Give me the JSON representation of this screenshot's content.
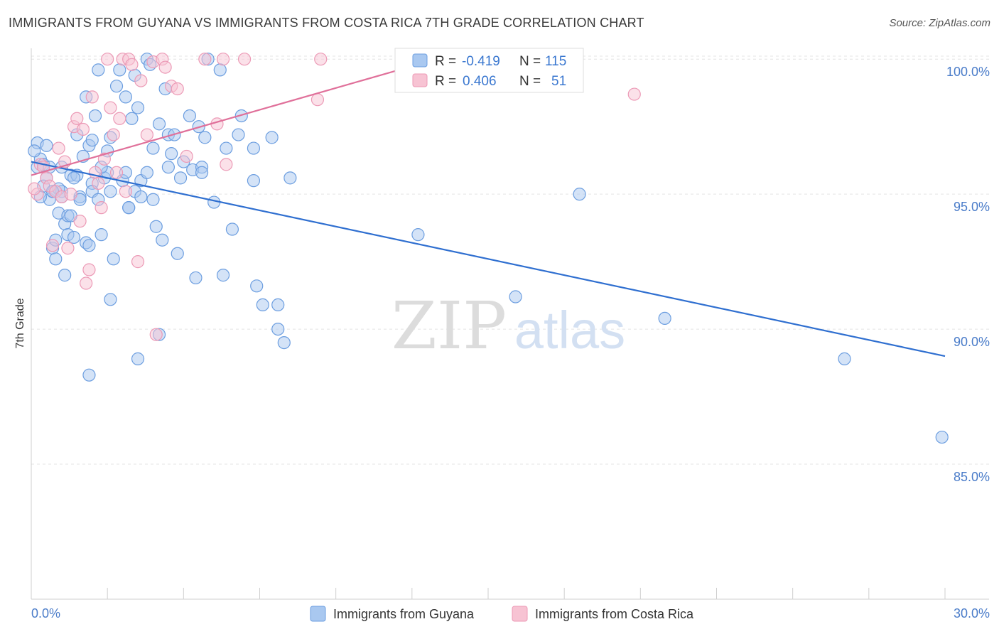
{
  "title": "IMMIGRANTS FROM GUYANA VS IMMIGRANTS FROM COSTA RICA 7TH GRADE CORRELATION CHART",
  "source": "Source: ZipAtlas.com",
  "watermark": {
    "zip": "ZIP",
    "atlas": "atlas"
  },
  "colors": {
    "blue_fill": "#a9c8f0",
    "blue_stroke": "#6c9ee0",
    "blue_line": "#2f6fd0",
    "pink_fill": "#f7c3d3",
    "pink_stroke": "#ec9ab6",
    "pink_line": "#e0709a",
    "grid": "#e4e4e4",
    "axis_text": "#4a7cc9"
  },
  "legend": {
    "r_label": "R =",
    "n_label": "N =",
    "rows": [
      {
        "r": "-0.419",
        "n": "115",
        "color": "blue"
      },
      {
        "r": "0.406",
        "n": "51",
        "color": "pink"
      }
    ]
  },
  "chart_data": {
    "type": "scatter",
    "title": "IMMIGRANTS FROM GUYANA VS IMMIGRANTS FROM COSTA RICA 7TH GRADE CORRELATION CHART",
    "xlabel": "",
    "ylabel": "7th Grade",
    "xlim": [
      0.0,
      30.0
    ],
    "ylim": [
      80.0,
      100.4
    ],
    "x_tick_labels": [
      "0.0%",
      "30.0%"
    ],
    "y_ticks": [
      85.0,
      90.0,
      95.0,
      100.0
    ],
    "y_tick_labels": [
      "85.0%",
      "90.0%",
      "95.0%",
      "100.0%"
    ],
    "grid": true,
    "legend_position": "bottom",
    "series": [
      {
        "name": "Immigrants from Guyana",
        "color": "blue",
        "r": -0.419,
        "n": 115,
        "trend": {
          "x": [
            0.0,
            30.0
          ],
          "y": [
            96.2,
            89.0
          ]
        },
        "points": [
          [
            0.2,
            96.9
          ],
          [
            0.3,
            96.3
          ],
          [
            0.4,
            96.1
          ],
          [
            0.5,
            96.8
          ],
          [
            0.5,
            95.6
          ],
          [
            0.6,
            94.8
          ],
          [
            0.7,
            95.1
          ],
          [
            0.7,
            93.0
          ],
          [
            0.8,
            92.6
          ],
          [
            0.8,
            93.3
          ],
          [
            0.9,
            94.3
          ],
          [
            1.0,
            96.0
          ],
          [
            1.0,
            95.1
          ],
          [
            1.1,
            93.9
          ],
          [
            1.2,
            94.2
          ],
          [
            1.2,
            93.5
          ],
          [
            1.3,
            94.2
          ],
          [
            1.3,
            95.7
          ],
          [
            1.4,
            93.4
          ],
          [
            1.5,
            97.2
          ],
          [
            1.5,
            95.7
          ],
          [
            1.6,
            94.9
          ],
          [
            1.7,
            96.4
          ],
          [
            1.8,
            98.6
          ],
          [
            1.8,
            93.2
          ],
          [
            1.9,
            93.1
          ],
          [
            1.9,
            96.8
          ],
          [
            2.0,
            95.4
          ],
          [
            2.0,
            95.1
          ],
          [
            2.1,
            97.9
          ],
          [
            2.2,
            94.8
          ],
          [
            2.2,
            99.6
          ],
          [
            2.3,
            93.5
          ],
          [
            2.4,
            95.6
          ],
          [
            2.5,
            95.8
          ],
          [
            2.5,
            96.6
          ],
          [
            2.6,
            91.1
          ],
          [
            2.6,
            97.1
          ],
          [
            2.7,
            92.6
          ],
          [
            2.8,
            99.0
          ],
          [
            2.9,
            99.6
          ],
          [
            3.0,
            95.5
          ],
          [
            3.1,
            98.6
          ],
          [
            3.1,
            95.8
          ],
          [
            3.2,
            94.5
          ],
          [
            3.3,
            97.8
          ],
          [
            3.4,
            99.4
          ],
          [
            3.4,
            95.1
          ],
          [
            3.5,
            98.2
          ],
          [
            3.6,
            94.9
          ],
          [
            3.6,
            95.5
          ],
          [
            3.8,
            95.8
          ],
          [
            3.8,
            100.0
          ],
          [
            3.9,
            99.8
          ],
          [
            4.0,
            96.7
          ],
          [
            4.0,
            94.8
          ],
          [
            4.1,
            93.8
          ],
          [
            4.2,
            97.6
          ],
          [
            4.3,
            93.3
          ],
          [
            4.4,
            98.9
          ],
          [
            4.5,
            97.2
          ],
          [
            4.5,
            96.0
          ],
          [
            4.6,
            96.5
          ],
          [
            4.7,
            97.2
          ],
          [
            4.8,
            92.8
          ],
          [
            4.9,
            95.6
          ],
          [
            5.0,
            96.2
          ],
          [
            5.2,
            97.9
          ],
          [
            5.3,
            95.9
          ],
          [
            5.4,
            91.9
          ],
          [
            5.5,
            97.5
          ],
          [
            5.6,
            96.0
          ],
          [
            5.6,
            95.8
          ],
          [
            5.8,
            100.0
          ],
          [
            5.7,
            97.1
          ],
          [
            6.0,
            94.7
          ],
          [
            6.2,
            99.6
          ],
          [
            6.3,
            92.0
          ],
          [
            6.4,
            96.7
          ],
          [
            6.6,
            93.7
          ],
          [
            6.8,
            97.2
          ],
          [
            6.9,
            97.9
          ],
          [
            7.3,
            96.7
          ],
          [
            7.3,
            95.5
          ],
          [
            7.4,
            91.6
          ],
          [
            7.6,
            90.9
          ],
          [
            7.9,
            97.1
          ],
          [
            8.1,
            90.9
          ],
          [
            8.1,
            90.0
          ],
          [
            8.3,
            89.5
          ],
          [
            8.5,
            95.6
          ],
          [
            1.1,
            92.0
          ],
          [
            1.9,
            88.3
          ],
          [
            3.5,
            88.9
          ],
          [
            4.2,
            89.8
          ],
          [
            3.2,
            94.5
          ],
          [
            2.6,
            95.1
          ],
          [
            12.7,
            93.5
          ],
          [
            15.9,
            91.2
          ],
          [
            18.0,
            95.0
          ],
          [
            20.8,
            90.4
          ],
          [
            26.7,
            88.9
          ],
          [
            29.9,
            86.0
          ],
          [
            0.3,
            94.9
          ],
          [
            0.4,
            95.3
          ],
          [
            0.6,
            96.0
          ],
          [
            0.9,
            95.2
          ],
          [
            1.0,
            94.9
          ],
          [
            1.4,
            95.6
          ],
          [
            2.0,
            97.0
          ],
          [
            2.3,
            96.0
          ],
          [
            0.2,
            96.0
          ],
          [
            0.1,
            96.6
          ],
          [
            0.7,
            95.1
          ],
          [
            1.6,
            94.8
          ]
        ]
      },
      {
        "name": "Immigrants from Costa Rica",
        "color": "pink",
        "r": 0.406,
        "n": 51,
        "trend": {
          "x": [
            0.0,
            13.0
          ],
          "y": [
            95.7,
            99.9
          ]
        },
        "points": [
          [
            0.2,
            95.0
          ],
          [
            0.3,
            96.1
          ],
          [
            0.4,
            96.0
          ],
          [
            0.5,
            95.6
          ],
          [
            0.6,
            95.3
          ],
          [
            0.7,
            93.1
          ],
          [
            0.8,
            95.1
          ],
          [
            0.9,
            96.7
          ],
          [
            1.0,
            94.9
          ],
          [
            1.1,
            96.2
          ],
          [
            1.2,
            93.0
          ],
          [
            1.3,
            95.0
          ],
          [
            1.4,
            97.5
          ],
          [
            1.5,
            97.8
          ],
          [
            1.6,
            94.0
          ],
          [
            1.7,
            97.4
          ],
          [
            1.8,
            91.7
          ],
          [
            1.9,
            92.2
          ],
          [
            2.0,
            98.6
          ],
          [
            2.1,
            95.8
          ],
          [
            2.2,
            95.4
          ],
          [
            2.3,
            94.5
          ],
          [
            2.4,
            96.3
          ],
          [
            2.5,
            100.0
          ],
          [
            2.6,
            98.2
          ],
          [
            2.7,
            97.2
          ],
          [
            2.8,
            95.8
          ],
          [
            2.9,
            97.8
          ],
          [
            3.0,
            100.0
          ],
          [
            3.1,
            95.1
          ],
          [
            3.2,
            100.0
          ],
          [
            3.3,
            99.8
          ],
          [
            3.5,
            92.5
          ],
          [
            3.6,
            99.2
          ],
          [
            3.8,
            97.2
          ],
          [
            4.0,
            99.9
          ],
          [
            4.1,
            89.8
          ],
          [
            4.3,
            100.0
          ],
          [
            4.4,
            99.7
          ],
          [
            4.6,
            99.0
          ],
          [
            4.8,
            98.9
          ],
          [
            5.1,
            96.4
          ],
          [
            5.7,
            100.0
          ],
          [
            6.1,
            97.6
          ],
          [
            6.3,
            100.0
          ],
          [
            6.4,
            96.1
          ],
          [
            7.0,
            100.0
          ],
          [
            9.4,
            98.5
          ],
          [
            9.5,
            100.0
          ],
          [
            19.8,
            98.7
          ],
          [
            0.1,
            95.2
          ]
        ]
      }
    ]
  }
}
